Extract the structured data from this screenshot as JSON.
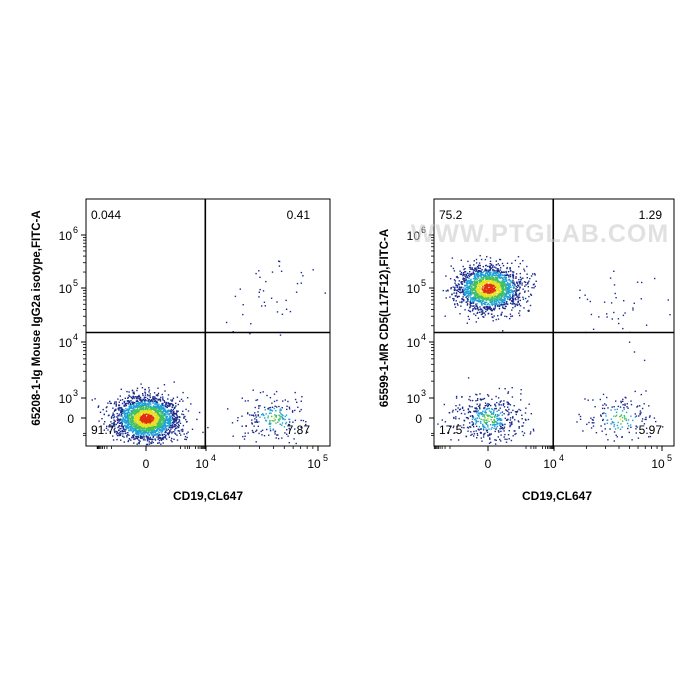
{
  "watermark": "WWW.PTGLAB.COM",
  "colors": {
    "low": "#1a2a8c",
    "mid": "#1fa0d8",
    "midhigh": "#40c060",
    "high": "#e8e020",
    "peak": "#e03010"
  },
  "chart_data": [
    {
      "type": "scatter",
      "subtype": "flow-cytometry-pseudocolor-quadrant-plot",
      "title": "",
      "xlabel": "CD19,CL647",
      "ylabel": "65208-1-Ig Mouse IgG2a isotype,FITC-A",
      "x_scale": "biexponential",
      "y_scale": "biexponential",
      "x_ticks": [
        {
          "value": 0,
          "label": "0"
        },
        {
          "value": 10000,
          "label": "10",
          "exp": "4"
        },
        {
          "value": 100000,
          "label": "10",
          "exp": "5"
        }
      ],
      "y_ticks": [
        {
          "value": 0,
          "label": "0"
        },
        {
          "value": 1000,
          "label": "10",
          "exp": "3"
        },
        {
          "value": 10000,
          "label": "10",
          "exp": "4"
        },
        {
          "value": 100000,
          "label": "10",
          "exp": "5"
        },
        {
          "value": 1000000,
          "label": "10",
          "exp": "6"
        }
      ],
      "gate": {
        "x": 9000,
        "y": 15000
      },
      "quadrants": {
        "upper_left": "0.044",
        "upper_right": "0.41",
        "lower_left": "91.7",
        "lower_right": "7.87"
      },
      "populations": [
        {
          "name": "",
          "x_center": 0,
          "y_center": 0,
          "share": 0.917
        },
        {
          "name": "",
          "x_center": 40000,
          "y_center": 0,
          "share": 0.0787
        },
        {
          "name": "",
          "x_center": 40000,
          "y_center": 80000,
          "share": 0.0041
        }
      ]
    },
    {
      "type": "scatter",
      "subtype": "flow-cytometry-pseudocolor-quadrant-plot",
      "title": "",
      "xlabel": "CD19,CL647",
      "ylabel": "65599-1-MR CD5(L17F12),FITC-A",
      "x_scale": "biexponential",
      "y_scale": "biexponential",
      "x_ticks": [
        {
          "value": 0,
          "label": "0"
        },
        {
          "value": 10000,
          "label": "10",
          "exp": "4"
        },
        {
          "value": 100000,
          "label": "10",
          "exp": "5"
        }
      ],
      "y_ticks": [
        {
          "value": 0,
          "label": "0"
        },
        {
          "value": 1000,
          "label": "10",
          "exp": "3"
        },
        {
          "value": 10000,
          "label": "10",
          "exp": "4"
        },
        {
          "value": 100000,
          "label": "10",
          "exp": "5"
        },
        {
          "value": 1000000,
          "label": "10",
          "exp": "6"
        }
      ],
      "gate": {
        "x": 9000,
        "y": 15000
      },
      "quadrants": {
        "upper_left": "75.2",
        "upper_right": "1.29",
        "lower_left": "17.5",
        "lower_right": "5.97"
      },
      "populations": [
        {
          "name": "",
          "x_center": 0,
          "y_center": 100000,
          "share": 0.752
        },
        {
          "name": "",
          "x_center": 0,
          "y_center": 0,
          "share": 0.175
        },
        {
          "name": "",
          "x_center": 40000,
          "y_center": 0,
          "share": 0.0597
        },
        {
          "name": "",
          "x_center": 40000,
          "y_center": 40000,
          "share": 0.0129
        }
      ]
    }
  ]
}
